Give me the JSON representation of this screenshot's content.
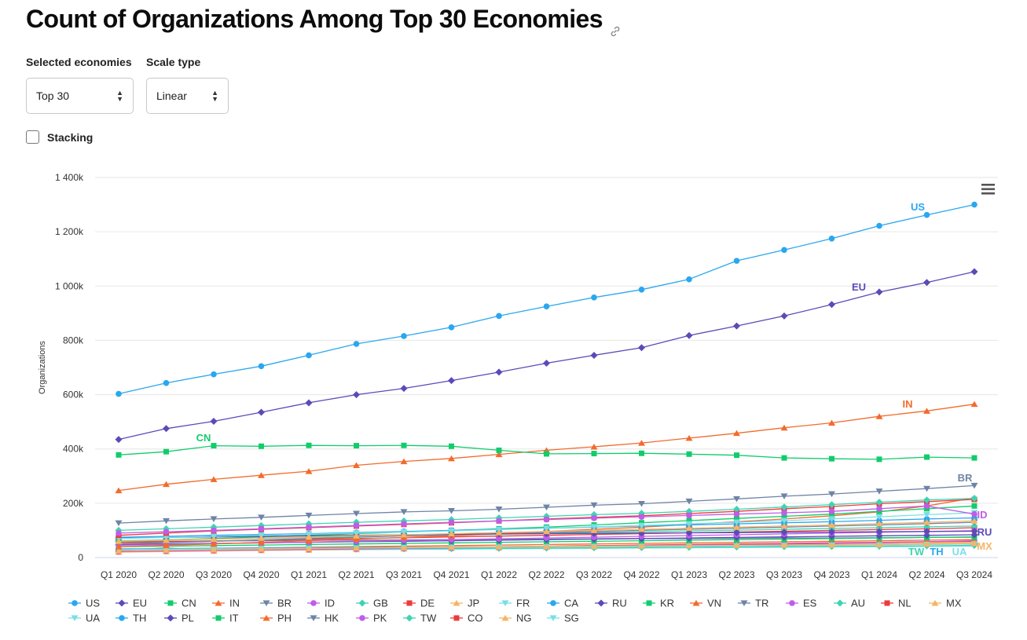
{
  "title": "Count of Organizations Among Top 30 Economies",
  "controls": {
    "economies_label": "Selected economies",
    "economies_value": "Top 30",
    "scale_label": "Scale type",
    "scale_value": "Linear",
    "stacking_label": "Stacking",
    "stacking_checked": false
  },
  "icons": {
    "title_link": "link-icon",
    "menu": "hamburger-menu-icon",
    "select_arrows": "updown-arrows-icon"
  },
  "chart_data": {
    "type": "line",
    "title": "",
    "xlabel": "",
    "ylabel": "Organizations",
    "ylim": [
      0,
      1400000
    ],
    "yticks": [
      0,
      200000,
      400000,
      600000,
      800000,
      1000000,
      1200000,
      1400000
    ],
    "ytick_labels": [
      "0",
      "200k",
      "400k",
      "600k",
      "800k",
      "1 000k",
      "1 200k",
      "1 400k"
    ],
    "grid": true,
    "legend_position": "bottom",
    "categories": [
      "Q1 2020",
      "Q2 2020",
      "Q3 2020",
      "Q4 2020",
      "Q1 2021",
      "Q2 2021",
      "Q3 2021",
      "Q4 2021",
      "Q1 2022",
      "Q2 2022",
      "Q3 2022",
      "Q4 2022",
      "Q1 2023",
      "Q2 2023",
      "Q3 2023",
      "Q4 2023",
      "Q1 2024",
      "Q2 2024",
      "Q3 2024"
    ],
    "series": [
      {
        "name": "US",
        "color": "#2aa7ee",
        "marker": "circle",
        "label": true,
        "values": [
          603000,
          643000,
          675000,
          705000,
          745000,
          787000,
          816000,
          848000,
          890000,
          925000,
          958000,
          987000,
          1025000,
          1093000,
          1133000,
          1175000,
          1222000,
          1262000,
          1300000
        ]
      },
      {
        "name": "EU",
        "color": "#5b4ab8",
        "marker": "diamond",
        "label": true,
        "values": [
          435000,
          475000,
          502000,
          535000,
          570000,
          600000,
          623000,
          652000,
          683000,
          716000,
          745000,
          773000,
          818000,
          853000,
          890000,
          932000,
          978000,
          1013000,
          1053000
        ]
      },
      {
        "name": "CN",
        "color": "#12cc6b",
        "marker": "square",
        "label": true,
        "values": [
          378000,
          390000,
          412000,
          410000,
          413000,
          412000,
          413000,
          410000,
          395000,
          382000,
          383000,
          384000,
          381000,
          377000,
          367000,
          364000,
          362000,
          370000,
          367000
        ]
      },
      {
        "name": "IN",
        "color": "#f26b2c",
        "marker": "triangle",
        "label": true,
        "values": [
          247000,
          270000,
          288000,
          303000,
          318000,
          340000,
          354000,
          365000,
          380000,
          395000,
          408000,
          422000,
          440000,
          458000,
          478000,
          496000,
          520000,
          540000,
          565000
        ]
      },
      {
        "name": "BR",
        "color": "#6e84a6",
        "marker": "triangle-down",
        "label": true,
        "values": [
          127000,
          135000,
          142000,
          148000,
          155000,
          162000,
          168000,
          172000,
          178000,
          185000,
          193000,
          198000,
          207000,
          216000,
          226000,
          234000,
          244000,
          254000,
          265000
        ]
      },
      {
        "name": "ID",
        "color": "#c05de8",
        "marker": "circle",
        "label": true,
        "values": [
          90000,
          95000,
          100000,
          106000,
          112000,
          118000,
          124000,
          130000,
          135000,
          140000,
          145000,
          150000,
          155000,
          160000,
          165000,
          170000,
          180000,
          190000,
          160000
        ]
      },
      {
        "name": "GB",
        "color": "#3fd4b1",
        "marker": "diamond",
        "label": false,
        "values": [
          100000,
          106000,
          112000,
          118000,
          124000,
          130000,
          135000,
          140000,
          146000,
          152000,
          158000,
          163000,
          170000,
          178000,
          186000,
          195000,
          204000,
          212000,
          218000
        ]
      },
      {
        "name": "DE",
        "color": "#ec3b3b",
        "marker": "square",
        "label": false,
        "values": [
          82000,
          90000,
          98000,
          104000,
          110000,
          116000,
          122000,
          128000,
          135000,
          142000,
          148000,
          154000,
          162000,
          170000,
          180000,
          188000,
          198000,
          206000,
          214000
        ]
      },
      {
        "name": "JP",
        "color": "#f5b566",
        "marker": "triangle",
        "label": false,
        "values": [
          60000,
          64000,
          68000,
          72000,
          76000,
          80000,
          84000,
          88000,
          92000,
          96000,
          100000,
          104000,
          108000,
          112000,
          116000,
          120000,
          125000,
          130000,
          135000
        ]
      },
      {
        "name": "FR",
        "color": "#7adfe6",
        "marker": "triangle-down",
        "label": false,
        "values": [
          70000,
          74000,
          78000,
          82000,
          86000,
          90000,
          94000,
          98000,
          103000,
          108000,
          113000,
          118000,
          124000,
          130000,
          136000,
          142000,
          150000,
          158000,
          165000
        ]
      },
      {
        "name": "CA",
        "color": "#2aa7ee",
        "marker": "circle",
        "label": false,
        "values": [
          75000,
          78000,
          82000,
          85000,
          88000,
          92000,
          96000,
          100000,
          104000,
          108000,
          112000,
          116000,
          120000,
          124000,
          128000,
          132000,
          137000,
          142000,
          146000
        ]
      },
      {
        "name": "RU",
        "color": "#5b4ab8",
        "marker": "diamond",
        "label": true,
        "values": [
          72000,
          74000,
          76000,
          78000,
          80000,
          82000,
          84000,
          86000,
          87000,
          88000,
          89000,
          90000,
          91000,
          92000,
          93000,
          94000,
          95000,
          96000,
          97000
        ]
      },
      {
        "name": "KR",
        "color": "#12cc6b",
        "marker": "square",
        "label": false,
        "values": [
          60000,
          65000,
          70000,
          76000,
          82000,
          88000,
          94000,
          100000,
          106000,
          112000,
          120000,
          128000,
          136000,
          144000,
          152000,
          160000,
          170000,
          180000,
          190000
        ]
      },
      {
        "name": "VN",
        "color": "#f26b2c",
        "marker": "triangle",
        "label": false,
        "values": [
          40000,
          45000,
          50000,
          56000,
          62000,
          68000,
          74000,
          80000,
          88000,
          96000,
          104000,
          112000,
          122000,
          132000,
          142000,
          154000,
          168000,
          190000,
          220000
        ]
      },
      {
        "name": "TR",
        "color": "#6e84a6",
        "marker": "triangle-down",
        "label": false,
        "values": [
          50000,
          55000,
          60000,
          65000,
          70000,
          75000,
          80000,
          84000,
          88000,
          92000,
          96000,
          100000,
          104000,
          108000,
          112000,
          116000,
          120000,
          125000,
          130000
        ]
      },
      {
        "name": "ES",
        "color": "#c05de8",
        "marker": "circle",
        "label": false,
        "values": [
          45000,
          48000,
          51000,
          54000,
          57000,
          60000,
          63000,
          66000,
          69000,
          72000,
          75000,
          78000,
          81000,
          84000,
          87000,
          90000,
          93000,
          96000,
          99000
        ]
      },
      {
        "name": "AU",
        "color": "#3fd4b1",
        "marker": "diamond",
        "label": false,
        "values": [
          62000,
          65000,
          68000,
          71000,
          74000,
          77000,
          80000,
          83000,
          86000,
          89000,
          92000,
          95000,
          98000,
          101000,
          104000,
          107000,
          110000,
          113000,
          116000
        ]
      },
      {
        "name": "NL",
        "color": "#ec3b3b",
        "marker": "square",
        "label": false,
        "values": [
          55000,
          58000,
          61000,
          64000,
          67000,
          70000,
          73000,
          76000,
          79000,
          82000,
          85000,
          88000,
          91000,
          94000,
          97000,
          100000,
          103000,
          106000,
          110000
        ]
      },
      {
        "name": "MX",
        "color": "#f5b566",
        "marker": "triangle",
        "label": true,
        "values": [
          25000,
          27000,
          29000,
          31000,
          33000,
          35000,
          37000,
          39000,
          40000,
          41000,
          42000,
          43000,
          44000,
          45000,
          46000,
          47000,
          48000,
          50000,
          52000
        ]
      },
      {
        "name": "UA",
        "color": "#7adfe6",
        "marker": "triangle-down",
        "label": true,
        "values": [
          30000,
          31000,
          32000,
          33000,
          34000,
          35000,
          36000,
          37000,
          38000,
          39000,
          40000,
          41000,
          42000,
          43000,
          44000,
          45000,
          46000,
          48000,
          50000
        ]
      },
      {
        "name": "TH",
        "color": "#2aa7ee",
        "marker": "circle",
        "label": true,
        "values": [
          32000,
          33000,
          34000,
          35000,
          36000,
          37000,
          38000,
          39000,
          40000,
          41000,
          42000,
          43000,
          44000,
          45000,
          46000,
          47000,
          48000,
          49000,
          50000
        ]
      },
      {
        "name": "PL",
        "color": "#5b4ab8",
        "marker": "diamond",
        "label": false,
        "values": [
          48000,
          50000,
          52000,
          54000,
          56000,
          58000,
          60000,
          62000,
          64000,
          66000,
          68000,
          70000,
          72000,
          74000,
          76000,
          78000,
          80000,
          82000,
          84000
        ]
      },
      {
        "name": "IT",
        "color": "#12cc6b",
        "marker": "square",
        "label": false,
        "values": [
          40000,
          42000,
          44000,
          46000,
          48000,
          50000,
          52000,
          54000,
          56000,
          58000,
          60000,
          62000,
          64000,
          66000,
          68000,
          70000,
          72000,
          74000,
          76000
        ]
      },
      {
        "name": "PH",
        "color": "#f26b2c",
        "marker": "triangle",
        "label": false,
        "values": [
          30000,
          32000,
          34000,
          36000,
          38000,
          40000,
          42000,
          44000,
          46000,
          48000,
          50000,
          52000,
          54000,
          56000,
          58000,
          60000,
          62000,
          64000,
          66000
        ]
      },
      {
        "name": "HK",
        "color": "#6e84a6",
        "marker": "triangle-down",
        "label": false,
        "values": [
          58000,
          60000,
          61000,
          62000,
          63000,
          64000,
          65000,
          66000,
          67000,
          68000,
          69000,
          70000,
          70000,
          71000,
          72000,
          72000,
          73000,
          74000,
          75000
        ]
      },
      {
        "name": "PK",
        "color": "#c05de8",
        "marker": "circle",
        "label": false,
        "values": [
          22000,
          24000,
          26000,
          28000,
          30000,
          32000,
          34000,
          36000,
          38000,
          40000,
          42000,
          44000,
          46000,
          48000,
          50000,
          52000,
          55000,
          58000,
          62000
        ]
      },
      {
        "name": "TW",
        "color": "#3fd4b1",
        "marker": "diamond",
        "label": true,
        "values": [
          26000,
          27000,
          28000,
          29000,
          30000,
          31000,
          32000,
          33000,
          34000,
          35000,
          36000,
          37000,
          38000,
          39000,
          40000,
          41000,
          42000,
          43000,
          45000
        ]
      },
      {
        "name": "CO",
        "color": "#ec3b3b",
        "marker": "square",
        "label": false,
        "values": [
          28000,
          35000,
          28000,
          30000,
          32000,
          34000,
          36000,
          38000,
          40000,
          42000,
          44000,
          46000,
          48000,
          50000,
          52000,
          54000,
          56000,
          58000,
          60000
        ]
      },
      {
        "name": "NG",
        "color": "#f5b566",
        "marker": "triangle",
        "label": false,
        "values": [
          20000,
          22000,
          24000,
          26000,
          28000,
          30000,
          32000,
          34000,
          36000,
          38000,
          40000,
          42000,
          44000,
          46000,
          48000,
          50000,
          52000,
          54000,
          56000
        ]
      },
      {
        "name": "SG",
        "color": "#7adfe6",
        "marker": "triangle-down",
        "label": false,
        "values": [
          24000,
          25000,
          26000,
          27000,
          28000,
          29000,
          30000,
          31000,
          32000,
          33000,
          34000,
          35000,
          36000,
          37000,
          38000,
          39000,
          40000,
          41000,
          42000
        ]
      }
    ]
  }
}
